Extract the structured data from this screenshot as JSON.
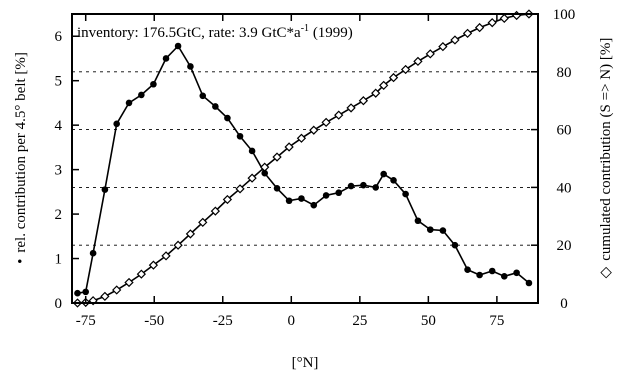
{
  "chart_data": {
    "type": "line",
    "annotation_prefix": "inventory: 176.5GtC, rate: 3.9 GtC*a",
    "annotation_sup": "-1",
    "annotation_suffix": " (1999)",
    "xlabel": "[°N]",
    "ylabel_left": "rel. contribution per 4.5° belt [%]",
    "ylabel_left_marker": "•",
    "ylabel_right": "cumulated contribution (S => N) [%]",
    "ylabel_right_marker": "◇",
    "xlim": [
      -80,
      90
    ],
    "ylim_left": [
      0,
      6.5
    ],
    "ylim_right": [
      0,
      100
    ],
    "x_ticks": [
      -75,
      -50,
      -25,
      0,
      25,
      50,
      75
    ],
    "y_ticks_left": [
      0,
      1,
      2,
      3,
      4,
      5,
      6
    ],
    "y_ticks_right": [
      0,
      20,
      40,
      60,
      80,
      100
    ],
    "gridlines_left": [
      1.3,
      2.6,
      3.9,
      5.2
    ],
    "grid": "dashed horizontal",
    "series": [
      {
        "marker": "filled-circle",
        "axis": "left",
        "points": [
          [
            -78,
            0.22
          ],
          [
            -75,
            0.25
          ],
          [
            -72.3,
            1.12
          ],
          [
            -68,
            2.55
          ],
          [
            -63.7,
            4.03
          ],
          [
            -59.2,
            4.5
          ],
          [
            -54.7,
            4.68
          ],
          [
            -50.3,
            4.92
          ],
          [
            -45.7,
            5.5
          ],
          [
            -41.3,
            5.78
          ],
          [
            -36.8,
            5.32
          ],
          [
            -32.3,
            4.66
          ],
          [
            -27.7,
            4.42
          ],
          [
            -23.3,
            4.16
          ],
          [
            -18.7,
            3.75
          ],
          [
            -14.3,
            3.42
          ],
          [
            -9.7,
            2.92
          ],
          [
            -5.2,
            2.58
          ],
          [
            -0.8,
            2.3
          ],
          [
            3.7,
            2.35
          ],
          [
            8.2,
            2.2
          ],
          [
            12.7,
            2.42
          ],
          [
            17.3,
            2.48
          ],
          [
            21.8,
            2.63
          ],
          [
            26.3,
            2.65
          ],
          [
            30.8,
            2.6
          ],
          [
            33.7,
            2.9
          ],
          [
            37.3,
            2.76
          ],
          [
            41.7,
            2.45
          ],
          [
            46.2,
            1.85
          ],
          [
            50.7,
            1.65
          ],
          [
            55.3,
            1.63
          ],
          [
            59.7,
            1.3
          ],
          [
            64.3,
            0.75
          ],
          [
            68.7,
            0.63
          ],
          [
            73.3,
            0.72
          ],
          [
            77.7,
            0.6
          ],
          [
            82.2,
            0.68
          ],
          [
            86.7,
            0.45
          ]
        ]
      },
      {
        "marker": "open-diamond",
        "axis": "right",
        "points": [
          [
            -78,
            0
          ],
          [
            -75,
            0.2
          ],
          [
            -72.3,
            0.8
          ],
          [
            -68,
            2.3
          ],
          [
            -63.7,
            4.5
          ],
          [
            -59.2,
            7.1
          ],
          [
            -54.7,
            10.0
          ],
          [
            -50.3,
            13.1
          ],
          [
            -45.7,
            16.3
          ],
          [
            -41.3,
            20.0
          ],
          [
            -36.8,
            23.9
          ],
          [
            -32.3,
            27.9
          ],
          [
            -27.7,
            31.8
          ],
          [
            -23.3,
            35.8
          ],
          [
            -18.7,
            39.5
          ],
          [
            -14.3,
            43.2
          ],
          [
            -9.7,
            47.0
          ],
          [
            -5.2,
            50.5
          ],
          [
            -0.8,
            54.0
          ],
          [
            3.7,
            57.0
          ],
          [
            8.2,
            59.8
          ],
          [
            12.7,
            62.5
          ],
          [
            17.3,
            65.0
          ],
          [
            21.8,
            67.5
          ],
          [
            26.3,
            70.0
          ],
          [
            30.8,
            72.6
          ],
          [
            33.7,
            75.3
          ],
          [
            37.3,
            78.0
          ],
          [
            41.7,
            80.8
          ],
          [
            46.2,
            83.6
          ],
          [
            50.7,
            86.2
          ],
          [
            55.3,
            88.7
          ],
          [
            59.7,
            91.0
          ],
          [
            64.3,
            93.3
          ],
          [
            68.7,
            95.3
          ],
          [
            73.3,
            97.0
          ],
          [
            77.7,
            98.5
          ],
          [
            82.2,
            99.5
          ],
          [
            86.7,
            100.0
          ]
        ]
      }
    ]
  }
}
